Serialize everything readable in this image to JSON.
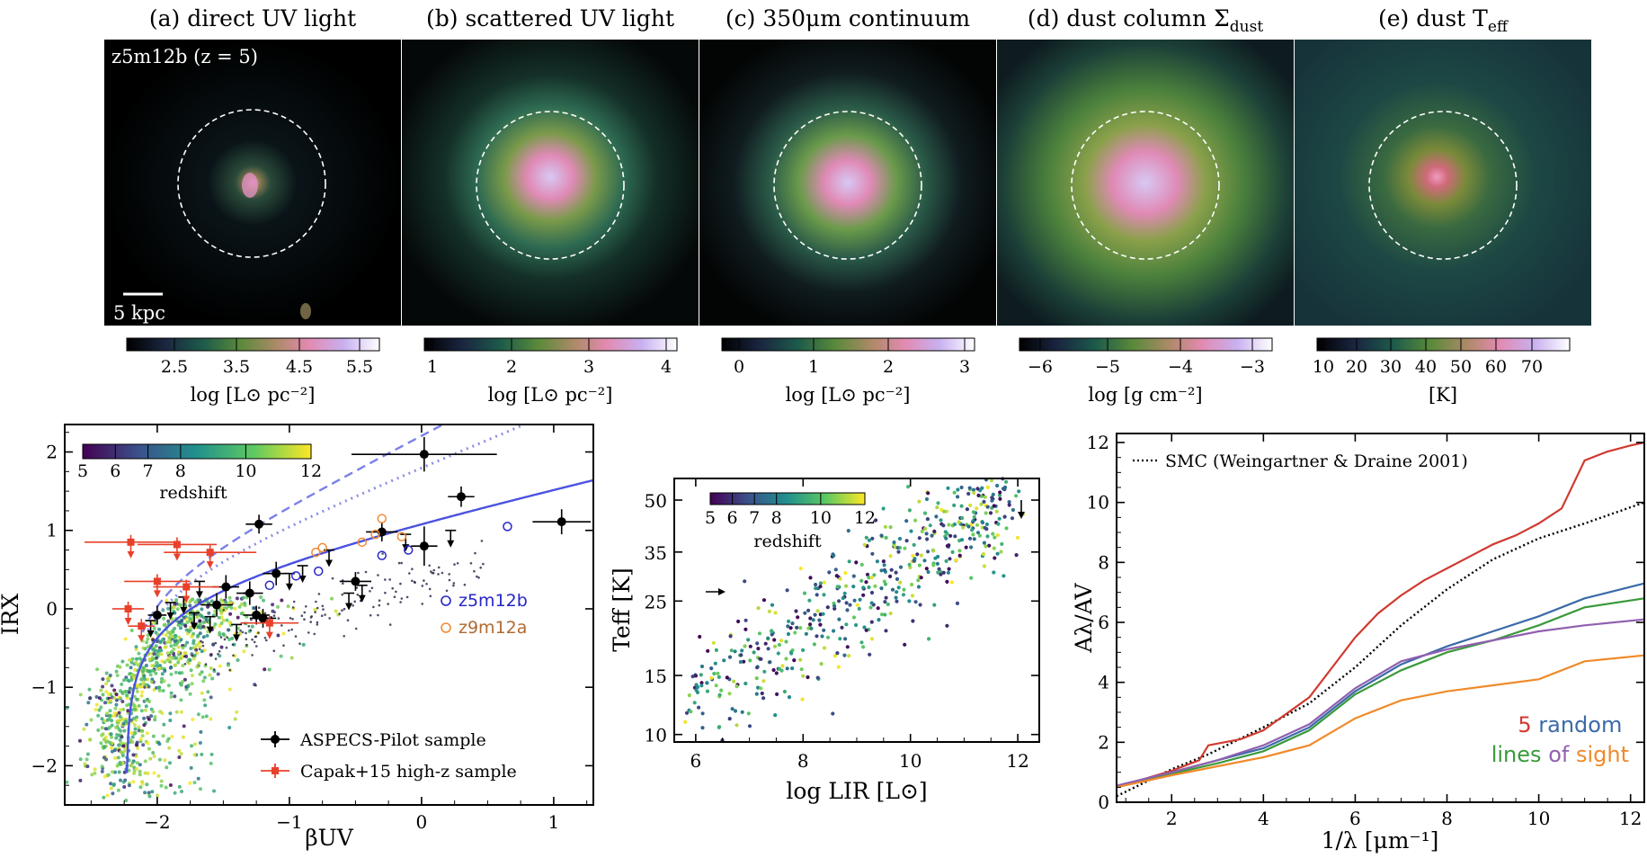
{
  "panel_titles": [
    {
      "pre": "(a) direct UV light",
      "sub": ""
    },
    {
      "pre": "(b) scattered UV light",
      "sub": ""
    },
    {
      "pre": "(c) 350μm continuum",
      "sub": ""
    },
    {
      "pre": "(d) dust column Σ",
      "sub": "dust"
    },
    {
      "pre": "(e) dust T",
      "sub": "eff"
    }
  ],
  "panel_a_label": "z5m12b (z = 5)",
  "scale_bar_label": "5 kpc",
  "colorbars": [
    {
      "ticks": [
        "2.5",
        "3.5",
        "4.5",
        "5.5"
      ],
      "label": "log [L⊙ pc⁻²]"
    },
    {
      "ticks": [
        "1",
        "2",
        "3",
        "4"
      ],
      "label": "log [L⊙ pc⁻²]"
    },
    {
      "ticks": [
        "0",
        "1",
        "2",
        "3"
      ],
      "label": "log [L⊙ pc⁻²]"
    },
    {
      "ticks": [
        "−6",
        "−5",
        "−4",
        "−3"
      ],
      "label": "log [g cm⁻²]"
    },
    {
      "ticks": [
        "10",
        "20",
        "30",
        "40",
        "50",
        "60",
        "70"
      ],
      "label": "[K]"
    }
  ],
  "colors": {
    "aspecs": "#000000",
    "capak": "#e8402a",
    "z5m12b": "#2626c8",
    "z9m12a": "#ef8a33",
    "relation": "#4a52e0",
    "los": [
      "#d03a30",
      "#3a6aa8",
      "#3a9a3a",
      "#9060b0",
      "#f08a2a"
    ]
  },
  "chart_data": [
    {
      "type": "scatter",
      "xlabel": "βUV",
      "ylabel": "IRX",
      "xlim": [
        -2.7,
        1.3
      ],
      "ylim": [
        -2.5,
        2.35
      ],
      "xticks": [
        "−2",
        "−1",
        "0",
        "1"
      ],
      "yticks": [
        "−2",
        "−1",
        "0",
        "1",
        "2"
      ],
      "colorbar": {
        "label": "redshift",
        "ticks": [
          "5",
          "6",
          "7",
          "8",
          "10",
          "12"
        ],
        "range": [
          5,
          12
        ]
      },
      "legend": {
        "placement": "lower-right",
        "entries": [
          "ASPECS-Pilot sample",
          "Capak+15 high-z sample"
        ]
      },
      "inline_labels": [
        "z5m12b",
        "z9m12a"
      ],
      "series": [
        {
          "name": "ASPECS-Pilot sample",
          "points": [
            {
              "x": 0.02,
              "y": 1.97,
              "xe": 0.55,
              "ye": 0.22
            },
            {
              "x": 0.3,
              "y": 1.43,
              "xe": 0.1,
              "ye": 0.13
            },
            {
              "x": 1.06,
              "y": 1.11,
              "xe": 0.22,
              "ye": 0.16
            },
            {
              "x": -1.23,
              "y": 1.08,
              "xe": 0.1,
              "ye": 0.12
            },
            {
              "x": -0.3,
              "y": 0.98,
              "xe": 0.12,
              "ye": 0.12
            },
            {
              "x": 0.02,
              "y": 0.8,
              "xe": 0.1,
              "ye": 0.25
            },
            {
              "x": -0.5,
              "y": 0.35,
              "xe": 0.12,
              "ye": 0.12
            },
            {
              "x": -1.1,
              "y": 0.45,
              "xe": 0.1,
              "ye": 0.15
            },
            {
              "x": -1.48,
              "y": 0.28,
              "xe": 0.1,
              "ye": 0.15
            },
            {
              "x": -1.3,
              "y": 0.2,
              "xe": 0.1,
              "ye": 0.15
            },
            {
              "x": -1.55,
              "y": 0.05,
              "xe": 0.12,
              "ye": 0.15
            },
            {
              "x": -1.25,
              "y": -0.08,
              "xe": 0.1,
              "ye": 0.12
            },
            {
              "x": -1.2,
              "y": -0.12,
              "xe": 0.1,
              "ye": 0.12
            },
            {
              "x": -2.0,
              "y": -0.08,
              "xe": 0.07,
              "ye": 0.12
            }
          ]
        },
        {
          "name": "ASPECS-Pilot upper limits",
          "points": [
            {
              "x": -0.12,
              "y": 0.95
            },
            {
              "x": 0.22,
              "y": 1.0
            },
            {
              "x": -0.7,
              "y": 0.75
            },
            {
              "x": -0.9,
              "y": 0.55
            },
            {
              "x": -1.0,
              "y": 0.45
            },
            {
              "x": -1.68,
              "y": 0.35
            },
            {
              "x": -1.8,
              "y": 0.15
            },
            {
              "x": -1.9,
              "y": 0.08
            },
            {
              "x": -2.05,
              "y": -0.15
            },
            {
              "x": -1.6,
              "y": -0.1
            },
            {
              "x": -1.4,
              "y": -0.2
            },
            {
              "x": -0.55,
              "y": 0.2
            },
            {
              "x": -0.45,
              "y": 0.3
            },
            {
              "x": -1.72,
              "y": -0.05
            }
          ]
        },
        {
          "name": "Capak+15 high-z sample",
          "points": [
            {
              "x": -2.2,
              "y": 0.85,
              "xe": 0.35
            },
            {
              "x": -1.85,
              "y": 0.82,
              "xe": 0.3
            },
            {
              "x": -1.6,
              "y": 0.72,
              "xe": 0.35
            },
            {
              "x": -2.0,
              "y": 0.35,
              "xe": 0.25
            },
            {
              "x": -1.78,
              "y": 0.28,
              "xe": 0.25
            },
            {
              "x": -2.22,
              "y": 0.0,
              "xe": 0.12
            },
            {
              "x": -1.15,
              "y": -0.18,
              "xe": 0.22
            },
            {
              "x": -2.12,
              "y": -0.22,
              "xe": 0.1
            }
          ]
        },
        {
          "name": "z5m12b",
          "points": [
            {
              "x": -1.15,
              "y": 0.3
            },
            {
              "x": -0.78,
              "y": 0.48
            },
            {
              "x": -0.3,
              "y": 0.68
            },
            {
              "x": -0.1,
              "y": 0.75
            },
            {
              "x": 0.65,
              "y": 1.05
            },
            {
              "x": -0.95,
              "y": 0.42
            }
          ]
        },
        {
          "name": "z9m12a",
          "points": [
            {
              "x": -0.75,
              "y": 0.78
            },
            {
              "x": -0.45,
              "y": 0.85
            },
            {
              "x": -0.3,
              "y": 1.15
            },
            {
              "x": -0.35,
              "y": 0.95
            },
            {
              "x": -0.8,
              "y": 0.72
            },
            {
              "x": -0.15,
              "y": 0.92
            }
          ]
        }
      ]
    },
    {
      "type": "scatter",
      "xlabel": "log LIR [L⊙]",
      "ylabel": "Teff [K]",
      "xlim": [
        5.6,
        12.4
      ],
      "ylim": [
        9.5,
        58
      ],
      "yscale": "log",
      "xticks": [
        "6",
        "8",
        "10",
        "12"
      ],
      "yticks": [
        "10",
        "15",
        "25",
        "35",
        "50"
      ],
      "colorbar": {
        "label": "redshift",
        "ticks": [
          "5",
          "6",
          "7",
          "8",
          "10",
          "12"
        ],
        "range": [
          5,
          12
        ]
      },
      "n_points": 550
    },
    {
      "type": "line",
      "xlabel": "1/λ [μm⁻¹]",
      "ylabel": "Aλ/AV",
      "xlim": [
        0.8,
        12.3
      ],
      "ylim": [
        0,
        12.3
      ],
      "xticks": [
        "2",
        "4",
        "6",
        "8",
        "10",
        "12"
      ],
      "yticks": [
        "0",
        "2",
        "4",
        "6",
        "8",
        "10",
        "12"
      ],
      "legend": {
        "placement": "top-left",
        "entries": [
          "SMC (Weingartner & Draine 2001)"
        ]
      },
      "annotation": [
        "5",
        "random",
        "lines",
        "of",
        "sight"
      ],
      "series": [
        {
          "name": "SMC (Weingartner & Draine 2001)",
          "x": [
            0.8,
            2,
            2.8,
            4,
            5,
            6,
            7,
            8,
            9,
            10,
            11,
            12.3
          ],
          "y": [
            0.2,
            1.1,
            1.6,
            2.5,
            3.3,
            4.5,
            5.9,
            7.1,
            8.1,
            8.8,
            9.3,
            10.0
          ]
        },
        {
          "name": "",
          "x": [
            0.8,
            2,
            2.6,
            2.8,
            3.5,
            4,
            5,
            5.5,
            6,
            6.5,
            7,
            7.5,
            8,
            8.5,
            9,
            9.5,
            10,
            10.5,
            11,
            11.5,
            12,
            12.3
          ],
          "y": [
            0.5,
            1.05,
            1.4,
            1.9,
            2.1,
            2.4,
            3.5,
            4.5,
            5.5,
            6.3,
            6.9,
            7.4,
            7.8,
            8.2,
            8.6,
            8.9,
            9.3,
            9.8,
            11.4,
            11.7,
            11.9,
            12.0
          ]
        },
        {
          "name": "",
          "x": [
            0.8,
            2,
            3,
            4,
            5,
            6,
            7,
            8,
            9,
            10,
            11,
            12.3
          ],
          "y": [
            0.55,
            1.0,
            1.4,
            1.8,
            2.5,
            3.7,
            4.6,
            5.2,
            5.7,
            6.2,
            6.8,
            7.3
          ]
        },
        {
          "name": "",
          "x": [
            0.8,
            2,
            3,
            4,
            5,
            6,
            7,
            8,
            9,
            10,
            11,
            12.3
          ],
          "y": [
            0.5,
            0.95,
            1.3,
            1.7,
            2.4,
            3.6,
            4.4,
            5.0,
            5.4,
            5.9,
            6.5,
            6.8
          ]
        },
        {
          "name": "",
          "x": [
            0.8,
            2,
            3,
            4,
            5,
            6,
            7,
            8,
            9,
            10,
            11,
            12.3
          ],
          "y": [
            0.55,
            1.0,
            1.4,
            1.9,
            2.6,
            3.8,
            4.7,
            5.1,
            5.4,
            5.7,
            5.9,
            6.1
          ]
        },
        {
          "name": "",
          "x": [
            0.8,
            2,
            3,
            4,
            5,
            6,
            7,
            8,
            9,
            10,
            11,
            12.3
          ],
          "y": [
            0.5,
            0.9,
            1.2,
            1.5,
            1.9,
            2.8,
            3.4,
            3.7,
            3.9,
            4.1,
            4.7,
            4.9
          ]
        }
      ]
    }
  ]
}
